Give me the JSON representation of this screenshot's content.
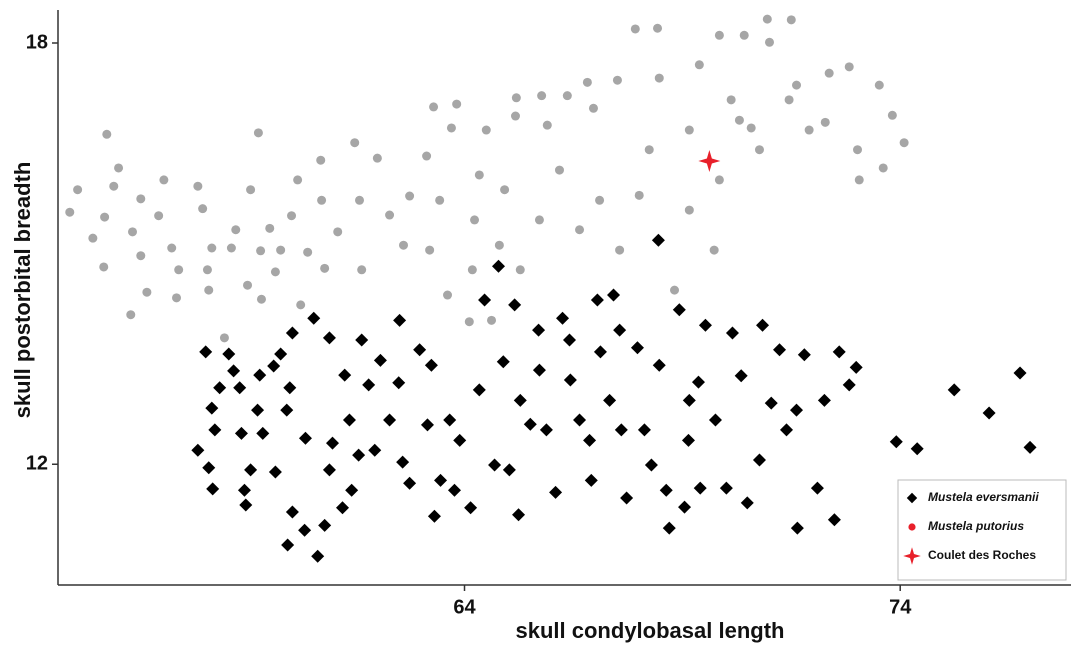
{
  "chart_data": {
    "type": "scatter",
    "xlabel": "skull condylobasal length",
    "ylabel": "skull postorbital breadth",
    "xlim": [
      54.67,
      77.92
    ],
    "ylim": [
      10.28,
      18.47
    ],
    "xticks": [
      64,
      74
    ],
    "yticks": [
      12,
      18
    ],
    "grid": false,
    "legend": "bottom-right",
    "series": [
      {
        "name": "Mustela eversmanii",
        "color": "#000000",
        "marker": "diamond",
        "x": [
          57.88,
          58.06,
          58.13,
          58.2,
          58.22,
          58.27,
          58.59,
          58.7,
          58.84,
          58.88,
          58.95,
          58.98,
          59.09,
          59.25,
          59.3,
          59.37,
          59.66,
          59.62,
          59.78,
          59.92,
          59.94,
          60.05,
          60.05,
          60.33,
          60.35,
          60.54,
          60.63,
          60.79,
          60.9,
          60.97,
          61.2,
          61.25,
          61.41,
          61.57,
          61.64,
          61.8,
          61.94,
          62.07,
          62.49,
          62.51,
          62.58,
          62.74,
          63.15,
          63.24,
          63.31,
          63.45,
          63.66,
          63.77,
          63.89,
          64.14,
          64.46,
          64.69,
          64.78,
          64.89,
          65.15,
          65.24,
          65.28,
          65.51,
          65.7,
          65.88,
          66.09,
          66.25,
          66.43,
          66.64,
          66.91,
          67.05,
          67.12,
          67.42,
          67.6,
          67.72,
          67.97,
          68.13,
          68.29,
          68.45,
          68.47,
          68.63,
          68.7,
          68.93,
          69.05,
          69.14,
          69.37,
          69.41,
          69.53,
          69.76,
          70.01,
          70.15,
          70.35,
          70.49,
          70.84,
          71.04,
          71.23,
          71.39,
          71.62,
          71.64,
          71.8,
          72.1,
          72.26,
          72.49,
          72.6,
          72.83,
          72.99,
          73.91,
          74.39,
          75.24,
          76.04,
          76.75,
          76.98,
          61.36,
          62.97,
          64.34,
          65.72,
          67.33,
          69.16,
          70.77,
          66.87,
          65.03,
          62.28,
          59.99,
          58.38,
          60.9,
          67.56,
          66.41
        ],
        "values": [
          12.2,
          13.6,
          11.95,
          12.8,
          11.65,
          12.49,
          13.57,
          13.33,
          13.09,
          12.44,
          11.63,
          11.42,
          11.92,
          12.77,
          13.27,
          12.44,
          11.89,
          13.4,
          13.57,
          12.77,
          10.85,
          13.87,
          11.32,
          11.06,
          12.37,
          14.08,
          10.69,
          11.13,
          13.8,
          12.3,
          11.38,
          13.27,
          11.63,
          12.13,
          13.77,
          13.13,
          12.2,
          13.48,
          13.16,
          14.05,
          12.03,
          11.73,
          12.56,
          13.41,
          11.26,
          11.77,
          12.63,
          11.63,
          12.34,
          11.38,
          14.34,
          11.99,
          14.82,
          13.46,
          14.27,
          11.28,
          12.91,
          12.57,
          13.91,
          12.49,
          11.6,
          14.08,
          13.2,
          12.63,
          11.77,
          14.34,
          13.6,
          14.41,
          12.49,
          11.52,
          13.66,
          12.49,
          11.99,
          15.19,
          13.41,
          11.63,
          11.09,
          14.2,
          11.39,
          12.34,
          13.17,
          11.66,
          13.98,
          12.63,
          11.66,
          13.87,
          13.26,
          11.45,
          13.98,
          12.87,
          13.63,
          12.49,
          12.77,
          11.09,
          13.56,
          11.66,
          12.91,
          11.21,
          13.6,
          13.13,
          13.38,
          12.32,
          12.22,
          13.06,
          12.73,
          13.3,
          12.24,
          12.63,
          13.63,
          13.06,
          13.34,
          12.91,
          12.91,
          12.06,
          12.34,
          11.92,
          12.63,
          13.09,
          13.09,
          11.92,
          13.91,
          13.77
        ]
      },
      {
        "name": "Mustela putorius",
        "color": "#a6a6a6",
        "legend_color": "#e8202a",
        "marker": "circle",
        "x": [
          54.94,
          55.12,
          55.47,
          55.74,
          55.72,
          55.79,
          55.95,
          56.06,
          56.34,
          56.38,
          56.57,
          56.71,
          56.57,
          56.98,
          57.1,
          57.39,
          57.28,
          57.44,
          57.88,
          57.99,
          58.1,
          58.13,
          58.2,
          58.49,
          58.65,
          58.75,
          59.02,
          59.09,
          59.27,
          59.32,
          59.34,
          59.53,
          59.66,
          59.78,
          60.03,
          60.17,
          60.24,
          60.4,
          60.7,
          60.72,
          60.79,
          61.09,
          61.48,
          61.59,
          62.0,
          61.64,
          62.28,
          62.6,
          62.74,
          63.13,
          63.2,
          63.29,
          63.61,
          63.82,
          63.7,
          64.11,
          64.18,
          64.5,
          64.62,
          65.17,
          65.19,
          65.28,
          65.77,
          65.9,
          66.36,
          66.82,
          66.96,
          67.51,
          67.92,
          68.43,
          68.47,
          69.39,
          69.85,
          70.12,
          70.42,
          70.58,
          70.95,
          71.5,
          71.62,
          72.28,
          72.37,
          72.83,
          73.02,
          73.52,
          73.61,
          73.82,
          74.09,
          71.0,
          68.01,
          67.1,
          66.64,
          66.18,
          67.56,
          69.16,
          69.85,
          70.77,
          71.45,
          69.16,
          68.24,
          65.72,
          64.92,
          64.34,
          64.23,
          63.43,
          64.8,
          68.82,
          69.73,
          70.31,
          71.91,
          73.06
        ],
        "values": [
          15.59,
          15.91,
          15.22,
          15.52,
          14.81,
          16.7,
          15.96,
          16.22,
          14.13,
          15.31,
          14.97,
          14.45,
          15.78,
          15.54,
          16.05,
          14.37,
          15.08,
          14.77,
          15.96,
          15.64,
          14.77,
          14.48,
          15.08,
          13.8,
          15.08,
          15.34,
          14.55,
          15.91,
          16.72,
          15.04,
          14.35,
          15.36,
          14.74,
          15.05,
          15.54,
          16.05,
          14.27,
          15.02,
          16.33,
          15.76,
          14.79,
          15.31,
          16.58,
          15.76,
          16.36,
          14.77,
          15.55,
          15.12,
          15.82,
          16.39,
          15.05,
          17.09,
          14.41,
          17.13,
          16.79,
          14.03,
          14.77,
          16.76,
          14.05,
          16.96,
          17.22,
          14.77,
          17.25,
          16.83,
          17.25,
          17.44,
          17.07,
          17.47,
          18.2,
          18.21,
          17.5,
          17.69,
          18.11,
          17.19,
          18.11,
          16.79,
          18.34,
          18.33,
          17.4,
          16.87,
          17.57,
          17.66,
          16.48,
          17.4,
          16.22,
          16.97,
          16.58,
          18.01,
          15.83,
          15.76,
          15.34,
          16.19,
          15.05,
          15.62,
          16.05,
          16.48,
          17.19,
          16.76,
          16.48,
          15.48,
          15.91,
          16.12,
          15.48,
          15.76,
          15.12,
          14.48,
          15.05,
          16.9,
          16.76,
          16.05
        ]
      },
      {
        "name": "Coulet des Roches",
        "color": "#e8202a",
        "marker": "star",
        "x": [
          69.62
        ],
        "values": [
          16.32
        ]
      }
    ]
  }
}
